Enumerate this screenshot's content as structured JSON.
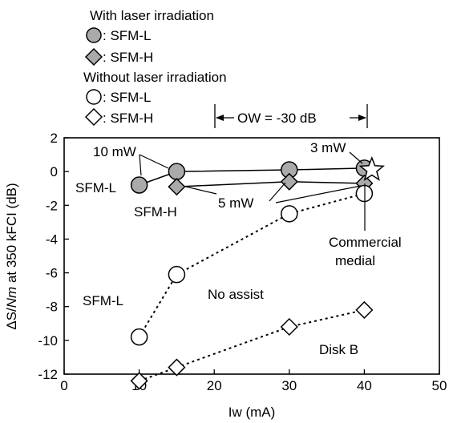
{
  "chart_data": {
    "type": "scatter",
    "xlabel": "Iw (mA)",
    "ylabel_prefix": "ΔS/",
    "ylabel_italic": "Nm",
    "ylabel_suffix": " at 350 kFCI (dB)",
    "xlim": [
      0,
      50
    ],
    "ylim": [
      -12,
      2
    ],
    "xticks": [
      0,
      10,
      20,
      30,
      40,
      50
    ],
    "yticks": [
      -12,
      -10,
      -8,
      -6,
      -4,
      -2,
      0,
      2
    ],
    "grid": false,
    "legend": {
      "group1_title": "With laser irradiation",
      "group2_title": "Without laser irradiation",
      "entries": [
        {
          "marker": "circle",
          "fill": "#aaaaaa",
          "label": ": SFM-L"
        },
        {
          "marker": "diamond",
          "fill": "#aaaaaa",
          "label": ": SFM-H"
        },
        {
          "marker": "circle",
          "fill": "#ffffff",
          "label": ": SFM-L"
        },
        {
          "marker": "diamond",
          "fill": "#ffffff",
          "label": ": SFM-H"
        }
      ]
    },
    "series": [
      {
        "name": "SFM-L",
        "marker": "circle",
        "fill": "#aaaaaa",
        "line": "solid",
        "x": [
          10,
          15,
          30,
          40
        ],
        "y": [
          -0.8,
          0.0,
          0.1,
          0.2
        ]
      },
      {
        "name": "SFM-H",
        "marker": "diamond",
        "fill": "#aaaaaa",
        "line": "solid",
        "x": [
          15,
          30,
          40
        ],
        "y": [
          -0.9,
          -0.6,
          -0.7
        ]
      },
      {
        "name": "SFM-L",
        "marker": "circle",
        "fill": "#ffffff",
        "line": "dotted",
        "x": [
          10,
          15,
          30,
          40
        ],
        "y": [
          -9.8,
          -6.1,
          -2.5,
          -1.3
        ]
      },
      {
        "name": "SFM-H",
        "marker": "diamond",
        "fill": "#ffffff",
        "line": "dotted",
        "x": [
          10,
          15,
          30,
          40
        ],
        "y": [
          -12.4,
          -11.6,
          -9.2,
          -8.2
        ]
      }
    ],
    "commercial_medial": {
      "x": 41,
      "y": 0.1,
      "marker": "star",
      "label_line1": "Commercial",
      "label_line2": "medial"
    },
    "ow_bracket": {
      "x_from": 20,
      "x_to": 40,
      "label": "OW = -30 dB"
    },
    "annotations": {
      "power_10mw": "10 mW",
      "power_3mw": "3 mW",
      "power_5mw": "5 mW",
      "sfm_l_top": "SFM-L",
      "sfm_h_top": "SFM-H",
      "sfm_l_bottom": "SFM-L",
      "no_assist": "No assist",
      "disk_b": "Disk B"
    }
  }
}
